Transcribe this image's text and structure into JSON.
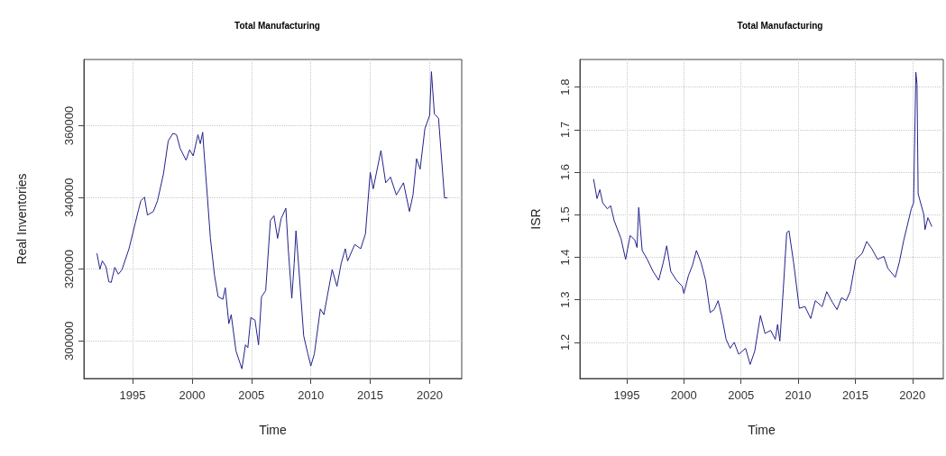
{
  "chart_data": [
    {
      "type": "line",
      "title": "Total Manufacturing",
      "xlabel": "Time",
      "ylabel": "Real Inventories",
      "grid": true,
      "marker": "none",
      "line_style": "solid",
      "xlim": [
        1990.9,
        2022.7
      ],
      "xticks": [
        1995,
        2000,
        2005,
        2010,
        2015,
        2020
      ],
      "ylim": [
        289500,
        378500
      ],
      "yticks": [
        300000,
        320000,
        340000,
        360000
      ],
      "series": [
        {
          "color": "#22228b",
          "x": [
            1992.0,
            1992.25,
            1992.45,
            1992.76,
            1993.0,
            1993.2,
            1993.5,
            1993.8,
            1994.1,
            1994.7,
            1995.5,
            1995.7,
            1996.0,
            1996.25,
            1996.75,
            1997.1,
            1997.6,
            1998.0,
            1998.4,
            1998.7,
            1999.0,
            1999.5,
            1999.8,
            2000.1,
            2000.5,
            2000.7,
            2000.9,
            2001.0,
            2001.3,
            2001.55,
            2001.9,
            2002.2,
            2002.6,
            2002.8,
            2003.1,
            2003.3,
            2003.7,
            2004.2,
            2004.5,
            2004.7,
            2004.95,
            2005.3,
            2005.6,
            2005.85,
            2006.2,
            2006.6,
            2006.9,
            2007.2,
            2007.5,
            2007.9,
            2008.1,
            2008.4,
            2008.6,
            2008.75,
            2009.0,
            2009.4,
            2009.75,
            2010.0,
            2010.3,
            2010.8,
            2011.1,
            2011.8,
            2012.2,
            2012.55,
            2012.9,
            2013.1,
            2013.7,
            2014.2,
            2014.6,
            2015.0,
            2015.25,
            2015.9,
            2016.3,
            2016.7,
            2017.2,
            2017.8,
            2018.3,
            2018.6,
            2018.9,
            2019.2,
            2019.6,
            2020.0,
            2020.15,
            2020.4,
            2020.75,
            2021.25,
            2021.5
          ],
          "values": [
            324400,
            320000,
            322300,
            320700,
            316500,
            316300,
            320500,
            318600,
            319800,
            325700,
            336600,
            339100,
            340100,
            335100,
            336100,
            339100,
            346600,
            355800,
            357900,
            357500,
            353700,
            350400,
            353300,
            351600,
            357500,
            355000,
            358200,
            353300,
            339900,
            328600,
            318200,
            312300,
            311600,
            314800,
            304800,
            307300,
            297200,
            292200,
            298900,
            298100,
            306500,
            305800,
            298900,
            312300,
            314000,
            333600,
            334900,
            328600,
            334100,
            337000,
            325700,
            311900,
            321500,
            330700,
            319900,
            301400,
            296400,
            293000,
            296400,
            308900,
            307300,
            319900,
            315200,
            321500,
            325700,
            322300,
            326900,
            325700,
            329900,
            347000,
            342400,
            353100,
            344100,
            345700,
            340700,
            344100,
            336100,
            340700,
            350800,
            347900,
            359200,
            362900,
            375100,
            363300,
            362100,
            339900,
            339900
          ]
        }
      ]
    },
    {
      "type": "line",
      "title": "Total Manufacturing",
      "xlabel": "Time",
      "ylabel": "ISR",
      "grid": true,
      "marker": "none",
      "line_style": "solid",
      "xlim": [
        1990.9,
        2022.7
      ],
      "xticks": [
        1995,
        2000,
        2005,
        2010,
        2015,
        2020
      ],
      "ylim": [
        1.115,
        1.865
      ],
      "yticks": [
        1.2,
        1.3,
        1.4,
        1.5,
        1.6,
        1.7,
        1.8
      ],
      "series": [
        {
          "color": "#22228b",
          "x": [
            1992.1,
            1992.4,
            1992.65,
            1992.9,
            1993.3,
            1993.6,
            1993.9,
            1994.5,
            1994.9,
            1995.3,
            1995.7,
            1995.9,
            1996.05,
            1996.35,
            1996.8,
            1997.3,
            1997.8,
            1998.2,
            1998.5,
            1998.85,
            1999.35,
            1999.85,
            2000.0,
            2000.4,
            2000.75,
            2001.1,
            2001.5,
            2001.9,
            2002.3,
            2002.65,
            2003.0,
            2003.3,
            2003.7,
            2004.05,
            2004.4,
            2004.8,
            2005.4,
            2005.8,
            2006.2,
            2006.7,
            2007.1,
            2007.6,
            2008.0,
            2008.2,
            2008.4,
            2008.7,
            2009.0,
            2009.2,
            2009.6,
            2010.1,
            2010.6,
            2011.1,
            2011.5,
            2012.1,
            2012.5,
            2013.0,
            2013.4,
            2013.8,
            2014.2,
            2014.55,
            2015.05,
            2015.6,
            2016.0,
            2016.45,
            2016.95,
            2017.5,
            2017.85,
            2018.5,
            2018.85,
            2019.25,
            2019.9,
            2020.1,
            2020.3,
            2020.4,
            2020.5,
            2021.0,
            2021.1,
            2021.35,
            2021.7
          ],
          "values": [
            1.584,
            1.538,
            1.559,
            1.528,
            1.514,
            1.521,
            1.486,
            1.444,
            1.395,
            1.451,
            1.441,
            1.423,
            1.517,
            1.416,
            1.395,
            1.367,
            1.346,
            1.388,
            1.427,
            1.367,
            1.346,
            1.332,
            1.315,
            1.357,
            1.381,
            1.416,
            1.388,
            1.346,
            1.27,
            1.277,
            1.298,
            1.263,
            1.207,
            1.186,
            1.2,
            1.172,
            1.186,
            1.148,
            1.179,
            1.263,
            1.221,
            1.228,
            1.207,
            1.242,
            1.203,
            1.325,
            1.458,
            1.462,
            1.388,
            1.28,
            1.284,
            1.256,
            1.298,
            1.284,
            1.319,
            1.294,
            1.277,
            1.305,
            1.298,
            1.319,
            1.395,
            1.409,
            1.437,
            1.42,
            1.395,
            1.402,
            1.374,
            1.353,
            1.388,
            1.441,
            1.514,
            1.528,
            1.835,
            1.807,
            1.549,
            1.5,
            1.465,
            1.493,
            1.472
          ]
        }
      ]
    }
  ]
}
